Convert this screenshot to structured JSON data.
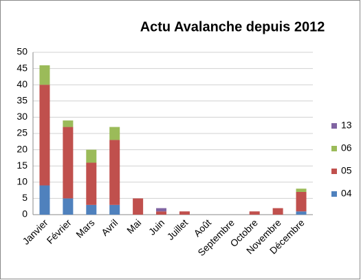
{
  "chart_data": {
    "type": "stacked_bar",
    "title": "Actu Avalanche  depuis 2012",
    "categories": [
      "Janvier",
      "Février",
      "Mars",
      "Avril",
      "Mai",
      "Juin",
      "Juillet",
      "Août",
      "Septembre",
      "Octobre",
      "Novembre",
      "Décembre"
    ],
    "series": [
      {
        "name": "04",
        "color": "#4f81bd",
        "values": [
          9,
          5,
          3,
          3,
          0,
          0,
          0,
          0,
          0,
          0,
          0,
          1
        ]
      },
      {
        "name": "05",
        "color": "#c0504d",
        "values": [
          31,
          22,
          13,
          20,
          5,
          1,
          1,
          0,
          0,
          1,
          2,
          6
        ]
      },
      {
        "name": "06",
        "color": "#9bbb59",
        "values": [
          6,
          2,
          4,
          4,
          0,
          0,
          0,
          0,
          0,
          0,
          0,
          1
        ]
      },
      {
        "name": "13",
        "color": "#8064a2",
        "values": [
          0,
          0,
          0,
          0,
          0,
          1,
          0,
          0,
          0,
          0,
          0,
          0
        ]
      }
    ],
    "ylim": [
      0,
      50
    ],
    "yticks": [
      0,
      5,
      10,
      15,
      20,
      25,
      30,
      35,
      40,
      45,
      50
    ],
    "grid": true,
    "legend": "right"
  }
}
